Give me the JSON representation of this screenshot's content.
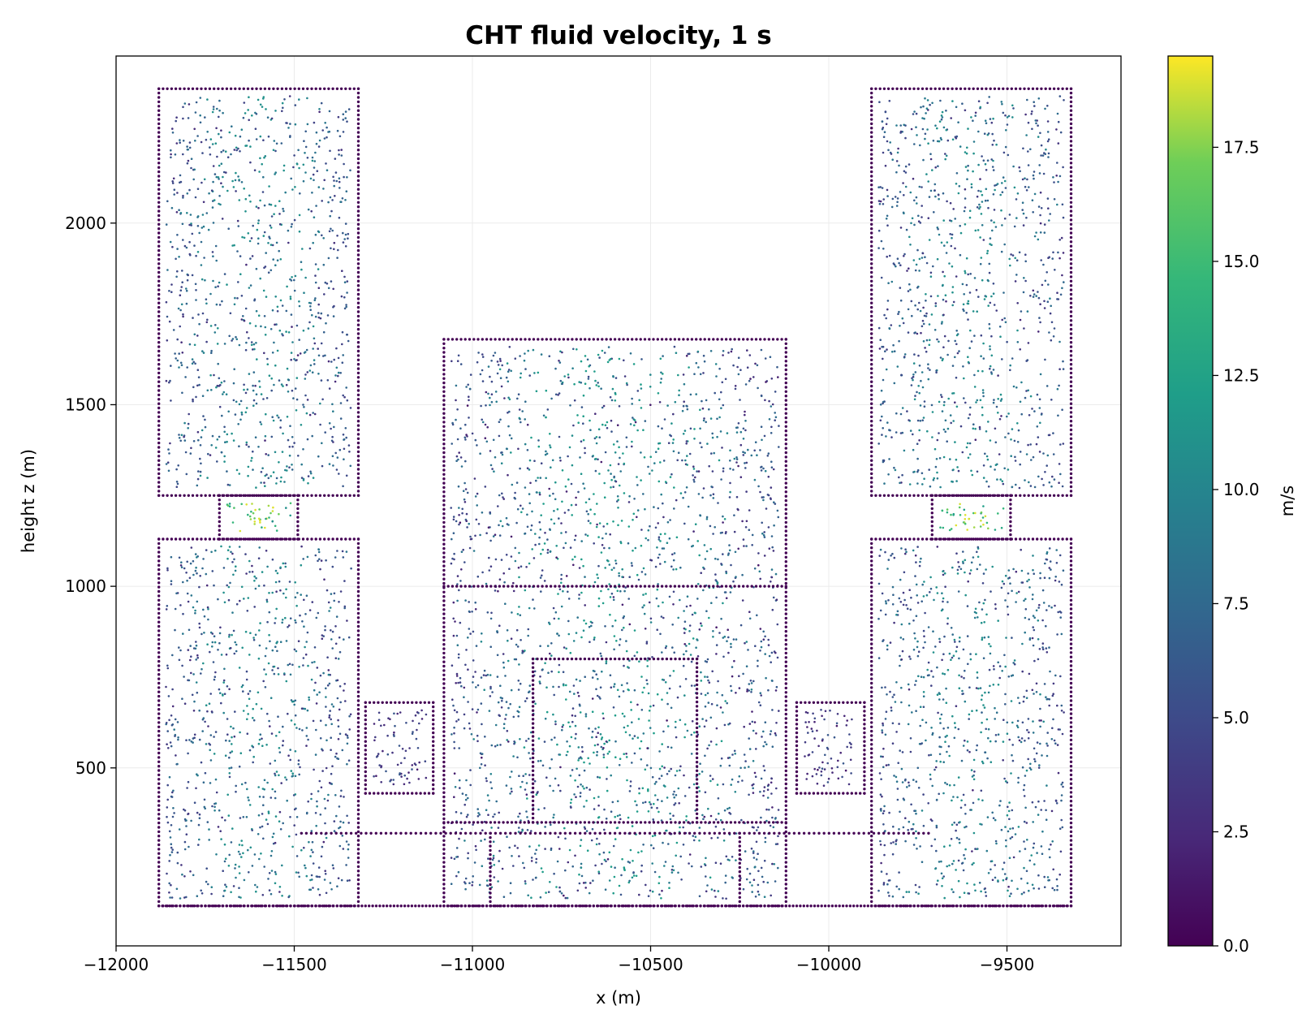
{
  "chart_data": {
    "type": "scatter",
    "title": "CHT fluid velocity, 1 s",
    "xlabel": "x (m)",
    "ylabel": "height z (m)",
    "xlim": [
      -12000,
      -9180
    ],
    "ylim": [
      10,
      2460
    ],
    "xticks": [
      -12000,
      -11500,
      -11000,
      -10500,
      -10000,
      -9500
    ],
    "xtick_labels": [
      "−12000",
      "−11500",
      "−11000",
      "−10500",
      "−10000",
      "−9500"
    ],
    "yticks": [
      500,
      1000,
      1500,
      2000
    ],
    "ytick_labels": [
      "500",
      "1000",
      "1500",
      "2000"
    ],
    "grid": true,
    "colorbar": {
      "label": "m/s",
      "range": [
        0,
        19.5
      ],
      "ticks": [
        0,
        2.5,
        5,
        7.5,
        10,
        12.5,
        15,
        17.5
      ],
      "tick_labels": [
        "0.0",
        "2.5",
        "5.0",
        "7.5",
        "10.0",
        "12.5",
        "15.0",
        "17.5"
      ],
      "colormap": "viridis"
    },
    "marker_color_low": "#440154",
    "marker_color_high": "#fde725",
    "regions": [
      {
        "name": "left-upper-block",
        "x": [
          -11880,
          -11320
        ],
        "z": [
          1250,
          2370
        ],
        "speed": [
          2,
          11
        ]
      },
      {
        "name": "left-lower-block",
        "x": [
          -11880,
          -11320
        ],
        "z": [
          120,
          1130
        ],
        "speed": [
          2,
          11
        ]
      },
      {
        "name": "left-connector",
        "x": [
          -11710,
          -11490
        ],
        "z": [
          1130,
          1250
        ],
        "speed": [
          10,
          19
        ]
      },
      {
        "name": "right-upper-block",
        "x": [
          -9880,
          -9320
        ],
        "z": [
          1250,
          2370
        ],
        "speed": [
          2,
          11
        ]
      },
      {
        "name": "right-lower-block",
        "x": [
          -9880,
          -9320
        ],
        "z": [
          120,
          1130
        ],
        "speed": [
          2,
          11
        ]
      },
      {
        "name": "right-connector",
        "x": [
          -9710,
          -9490
        ],
        "z": [
          1130,
          1250
        ],
        "speed": [
          10,
          19
        ]
      },
      {
        "name": "center-block",
        "x": [
          -11080,
          -10120
        ],
        "z": [
          120,
          1680
        ],
        "speed": [
          1,
          12
        ]
      },
      {
        "name": "left-side-pocket",
        "x": [
          -11300,
          -11110
        ],
        "z": [
          430,
          680
        ],
        "speed": [
          1,
          6
        ]
      },
      {
        "name": "right-side-pocket",
        "x": [
          -10090,
          -9900
        ],
        "z": [
          430,
          680
        ],
        "speed": [
          1,
          6
        ]
      }
    ]
  }
}
